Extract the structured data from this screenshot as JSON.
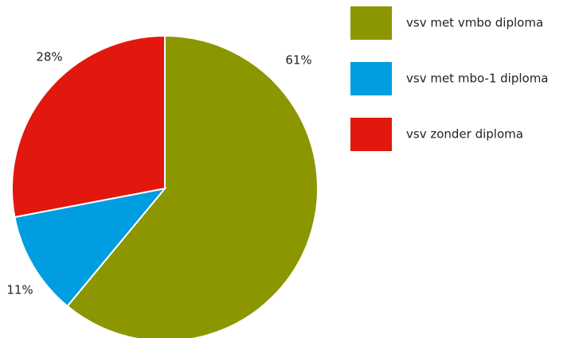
{
  "chart_data": {
    "type": "pie",
    "categories": [
      "vsv met vmbo diploma",
      "vsv met mbo-1 diploma",
      "vsv zonder diploma"
    ],
    "values": [
      61,
      11,
      28
    ],
    "value_labels": [
      "61%",
      "11%",
      "28%"
    ],
    "colors": [
      "#8c9600",
      "#009ee0",
      "#e2180f"
    ],
    "legend": "right"
  }
}
